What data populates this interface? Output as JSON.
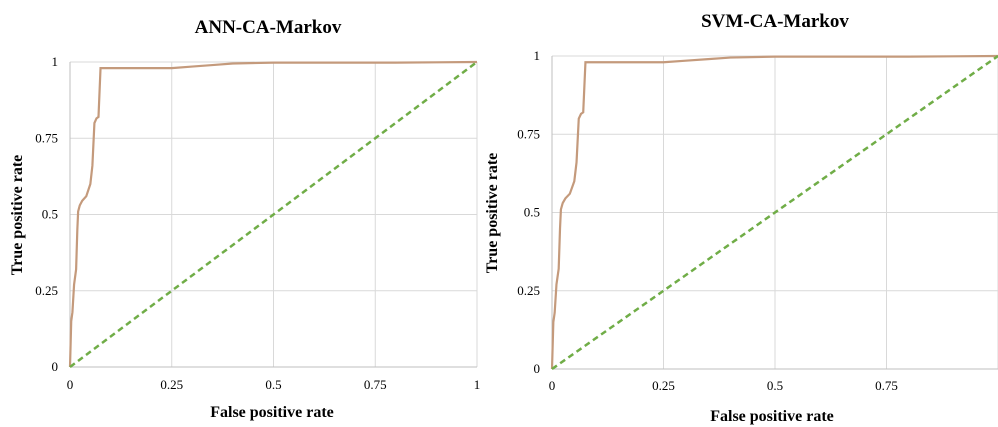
{
  "chart_data": [
    {
      "type": "line",
      "title": "ANN-CA-Markov",
      "xlabel": "False positive rate",
      "ylabel": "True positive rate",
      "xlim": [
        0,
        1
      ],
      "ylim": [
        0,
        1
      ],
      "x_ticks": [
        "0",
        "0.25",
        "0.5",
        "0.75",
        "1"
      ],
      "y_ticks": [
        "0",
        "0.25",
        "0.5",
        "0.75",
        "1"
      ],
      "grid": true,
      "series": [
        {
          "style": "solid",
          "color": "#c49a7c",
          "x": [
            0,
            0.003,
            0.006,
            0.01,
            0.015,
            0.018,
            0.02,
            0.024,
            0.03,
            0.04,
            0.05,
            0.055,
            0.06,
            0.065,
            0.07,
            0.075,
            0.08,
            0.1,
            0.15,
            0.2,
            0.25,
            0.3,
            0.35,
            0.4,
            0.5,
            0.6,
            0.7,
            0.8,
            0.9,
            1.0
          ],
          "y": [
            0,
            0.15,
            0.18,
            0.27,
            0.32,
            0.45,
            0.51,
            0.53,
            0.545,
            0.56,
            0.6,
            0.66,
            0.8,
            0.815,
            0.82,
            0.98,
            0.98,
            0.98,
            0.98,
            0.98,
            0.98,
            0.985,
            0.99,
            0.995,
            0.998,
            0.998,
            0.998,
            0.998,
            0.999,
            1.0
          ]
        },
        {
          "style": "dashed",
          "color": "#70ad47",
          "x": [
            0,
            1
          ],
          "y": [
            0,
            1
          ]
        }
      ]
    },
    {
      "type": "line",
      "title": "SVM-CA-Markov",
      "xlabel": "False positive rate",
      "ylabel": "True positive rate",
      "xlim": [
        0,
        1
      ],
      "ylim": [
        0,
        1
      ],
      "x_ticks": [
        "0",
        "0.25",
        "0.5",
        "0.75"
      ],
      "y_ticks": [
        "0",
        "0.25",
        "0.5",
        "0.75",
        "1"
      ],
      "grid": true,
      "series": [
        {
          "style": "solid",
          "color": "#c49a7c",
          "x": [
            0,
            0.003,
            0.006,
            0.01,
            0.015,
            0.018,
            0.02,
            0.024,
            0.03,
            0.04,
            0.05,
            0.055,
            0.06,
            0.065,
            0.07,
            0.075,
            0.08,
            0.1,
            0.15,
            0.2,
            0.25,
            0.3,
            0.35,
            0.4,
            0.5,
            0.6,
            0.7,
            0.8,
            0.9,
            1.0
          ],
          "y": [
            0,
            0.15,
            0.18,
            0.27,
            0.32,
            0.45,
            0.51,
            0.53,
            0.545,
            0.56,
            0.6,
            0.66,
            0.8,
            0.815,
            0.82,
            0.98,
            0.98,
            0.98,
            0.98,
            0.98,
            0.98,
            0.985,
            0.99,
            0.995,
            0.998,
            0.998,
            0.998,
            0.998,
            0.999,
            1.0
          ]
        },
        {
          "style": "dashed",
          "color": "#70ad47",
          "x": [
            0,
            1
          ],
          "y": [
            0,
            1
          ]
        }
      ]
    }
  ]
}
